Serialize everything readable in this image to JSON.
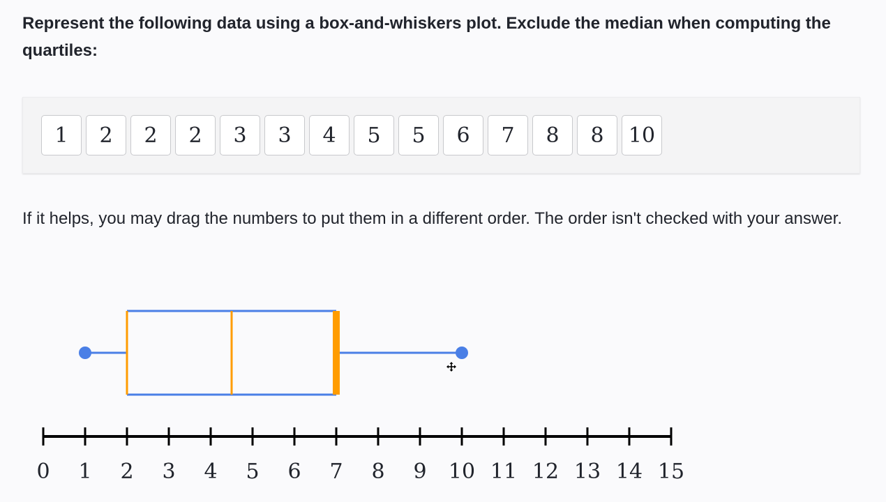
{
  "question": {
    "text": "Represent the following data using a box-and-whiskers plot. Exclude the median when computing the quartiles:"
  },
  "data_tiles": [
    "1",
    "2",
    "2",
    "2",
    "3",
    "3",
    "4",
    "5",
    "5",
    "6",
    "7",
    "8",
    "8",
    "10"
  ],
  "hint": {
    "text": "If it helps, you may drag the numbers to put them in a different order. The order isn't checked with your answer."
  },
  "chart_data": {
    "type": "box",
    "number_line": {
      "min": 0,
      "max": 15,
      "tick_step": 1,
      "tick_labels": [
        "0",
        "1",
        "2",
        "3",
        "4",
        "5",
        "6",
        "7",
        "8",
        "9",
        "10",
        "11",
        "12",
        "13",
        "14",
        "15"
      ]
    },
    "box_plot": {
      "min": 1,
      "q1": 2,
      "median": 4.5,
      "q3": 7,
      "max": 10
    },
    "active_handle": "q3"
  },
  "colors": {
    "box": "#4a7fe6",
    "quartile_line": "#ff9c00",
    "axis": "#000000",
    "handle": "#4a7fe6"
  },
  "icons": {
    "cursor": "move-cursor-icon"
  }
}
